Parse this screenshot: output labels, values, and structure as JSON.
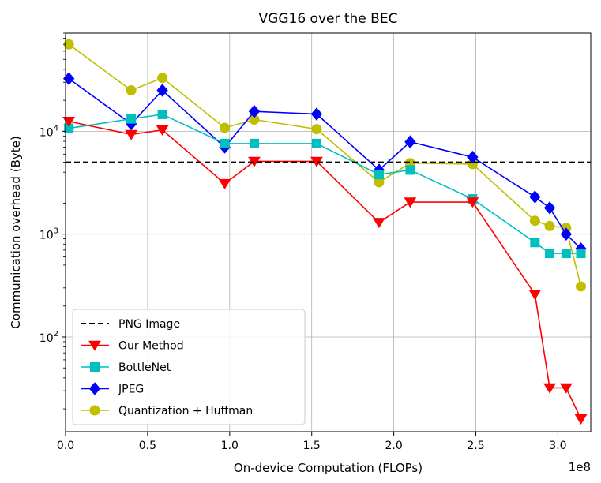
{
  "chart_data": {
    "type": "line",
    "title": "VGG16 over the BEC",
    "xlabel": "On-device Computation (FLOPs)",
    "ylabel": "Communication overhead (Byte)",
    "x_multiplier_label": "1e8",
    "xlim": [
      0,
      3.2
    ],
    "ylim": [
      12,
      90000
    ],
    "yscale": "log",
    "grid": true,
    "legend_position": "lower-left",
    "x_ticks": [
      {
        "value": 0.0,
        "label": "0.0"
      },
      {
        "value": 0.5,
        "label": "0.5"
      },
      {
        "value": 1.0,
        "label": "1.0"
      },
      {
        "value": 1.5,
        "label": "1.5"
      },
      {
        "value": 2.0,
        "label": "2.0"
      },
      {
        "value": 2.5,
        "label": "2.5"
      },
      {
        "value": 3.0,
        "label": "3.0"
      }
    ],
    "y_ticks": [
      {
        "value": 100,
        "base": "10",
        "exp": "2"
      },
      {
        "value": 1000,
        "base": "10",
        "exp": "3"
      },
      {
        "value": 10000,
        "base": "10",
        "exp": "4"
      }
    ],
    "series": [
      {
        "name": "PNG Image",
        "style": "dashed",
        "marker": "none",
        "color": "#000000",
        "x": [
          0,
          3.2
        ],
        "values": [
          5000,
          5000
        ]
      },
      {
        "name": "Our Method",
        "style": "solid",
        "marker": "triangle-down",
        "color": "#ff0000",
        "x": [
          0.02,
          0.4,
          0.59,
          0.97,
          1.15,
          1.53,
          1.91,
          2.1,
          2.48,
          2.86,
          2.95,
          3.05,
          3.14
        ],
        "values": [
          12500,
          9300,
          10300,
          3100,
          5100,
          5100,
          1300,
          2050,
          2050,
          260,
          32,
          32,
          16
        ]
      },
      {
        "name": "BottleNet",
        "style": "solid",
        "marker": "square",
        "color": "#00bfbf",
        "x": [
          0.02,
          0.4,
          0.59,
          0.97,
          1.15,
          1.53,
          1.91,
          2.1,
          2.48,
          2.86,
          2.95,
          3.05,
          3.14
        ],
        "values": [
          10700,
          13200,
          14600,
          7600,
          7600,
          7600,
          3800,
          4200,
          2200,
          830,
          650,
          650,
          650
        ]
      },
      {
        "name": "JPEG",
        "style": "solid",
        "marker": "diamond",
        "color": "#0000ff",
        "x": [
          0.02,
          0.4,
          0.59,
          0.97,
          1.15,
          1.53,
          1.91,
          2.1,
          2.48,
          2.86,
          2.95,
          3.05,
          3.14
        ],
        "values": [
          32500,
          11800,
          25000,
          7000,
          15600,
          14700,
          4200,
          7900,
          5600,
          2300,
          1800,
          1000,
          720
        ]
      },
      {
        "name": "Quantization + Huffman",
        "style": "solid",
        "marker": "circle",
        "color": "#bfbf00",
        "x": [
          0.02,
          0.4,
          0.59,
          0.97,
          1.15,
          1.53,
          1.91,
          2.1,
          2.48,
          2.86,
          2.95,
          3.05,
          3.14
        ],
        "values": [
          70000,
          25000,
          33000,
          10800,
          13000,
          10500,
          3200,
          4900,
          4800,
          1350,
          1200,
          1150,
          310
        ]
      }
    ]
  }
}
